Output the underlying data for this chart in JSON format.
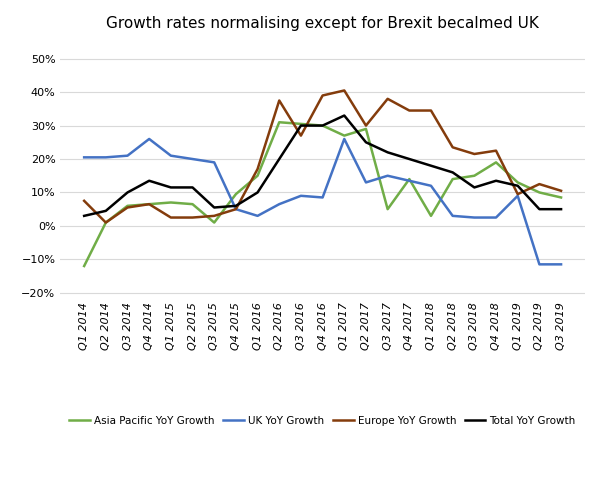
{
  "title": "Growth rates normalising except for Brexit becalmed UK",
  "categories": [
    "Q1 2014",
    "Q2 2014",
    "Q3 2014",
    "Q4 2014",
    "Q1 2015",
    "Q2 2015",
    "Q3 2015",
    "Q4 2015",
    "Q1 2016",
    "Q2 2016",
    "Q3 2016",
    "Q4 2016",
    "Q1 2017",
    "Q2 2017",
    "Q3 2017",
    "Q4 2017",
    "Q1 2018",
    "Q2 2018",
    "Q3 2018",
    "Q4 2018",
    "Q1 2019",
    "Q2 2019",
    "Q3 2019"
  ],
  "asia_pacific": [
    -0.12,
    0.01,
    0.06,
    0.065,
    0.07,
    0.065,
    0.01,
    0.095,
    0.15,
    0.31,
    0.305,
    0.3,
    0.27,
    0.29,
    0.05,
    0.14,
    0.03,
    0.14,
    0.15,
    0.19,
    0.13,
    0.1,
    0.085
  ],
  "uk": [
    0.205,
    0.205,
    0.21,
    0.26,
    0.21,
    0.2,
    0.19,
    0.05,
    0.03,
    0.065,
    0.09,
    0.085,
    0.26,
    0.13,
    0.15,
    0.135,
    0.12,
    0.03,
    0.025,
    0.025,
    0.09,
    -0.115,
    -0.115
  ],
  "europe": [
    0.075,
    0.01,
    0.055,
    0.065,
    0.025,
    0.025,
    0.03,
    0.05,
    0.17,
    0.375,
    0.27,
    0.39,
    0.405,
    0.3,
    0.38,
    0.345,
    0.345,
    0.235,
    0.215,
    0.225,
    0.095,
    0.125,
    0.105
  ],
  "total": [
    0.03,
    0.045,
    0.1,
    0.135,
    0.115,
    0.115,
    0.055,
    0.06,
    0.1,
    0.2,
    0.3,
    0.3,
    0.33,
    0.25,
    0.22,
    0.2,
    0.18,
    0.16,
    0.115,
    0.135,
    0.12,
    0.05,
    0.05
  ],
  "asia_pacific_color": "#70ad47",
  "uk_color": "#4472c4",
  "europe_color": "#843c0c",
  "total_color": "#000000",
  "background_color": "#ffffff",
  "ylim": [
    -0.22,
    0.56
  ],
  "yticks": [
    -0.2,
    -0.1,
    0.0,
    0.1,
    0.2,
    0.3,
    0.4,
    0.5
  ],
  "legend_labels": [
    "Asia Pacific YoY Growth",
    "UK YoY Growth",
    "Europe YoY Growth",
    "Total YoY Growth"
  ]
}
